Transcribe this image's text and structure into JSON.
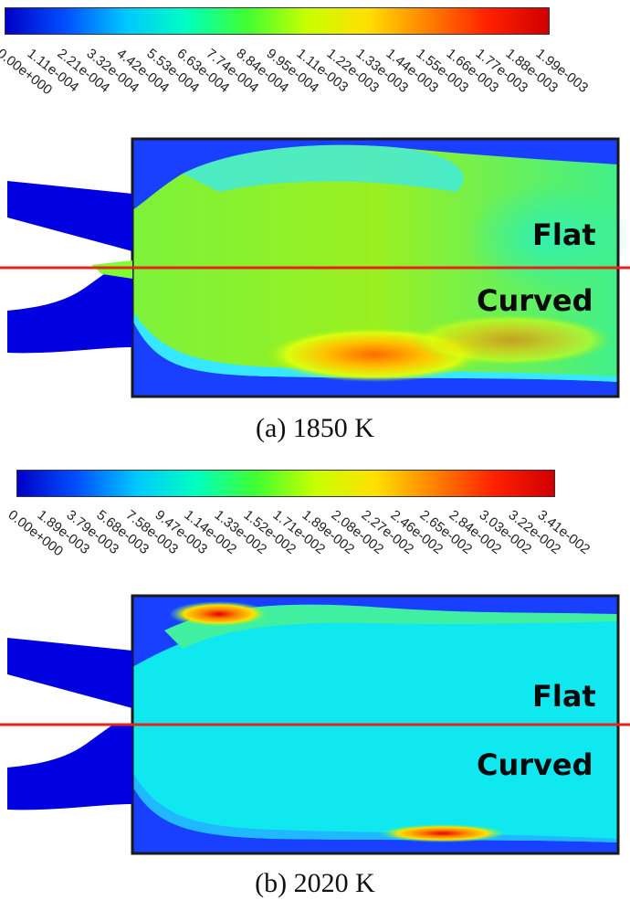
{
  "panels": [
    {
      "id": "a",
      "caption": "(a) 1850 K",
      "label_flat": "Flat",
      "label_curved": "Curved",
      "colorbar_ticks": [
        "0.00e+000",
        "1.11e-004",
        "2.21e-004",
        "3.32e-004",
        "4.42e-004",
        "5.53e-004",
        "6.63e-004",
        "7.74e-004",
        "8.84e-004",
        "9.95e-004",
        "1.11e-003",
        "1.22e-003",
        "1.33e-003",
        "1.44e-003",
        "1.55e-003",
        "1.66e-003",
        "1.77e-003",
        "1.88e-003",
        "1.99e-003"
      ]
    },
    {
      "id": "b",
      "caption": "(b) 2020 K",
      "label_flat": "Flat",
      "label_curved": "Curved",
      "colorbar_ticks": [
        "0.00e+000",
        "1.89e-003",
        "3.79e-003",
        "5.68e-003",
        "7.58e-003",
        "9.47e-003",
        "1.14e-002",
        "1.33e-002",
        "1.52e-002",
        "1.71e-002",
        "1.89e-002",
        "2.08e-002",
        "2.27e-002",
        "2.46e-002",
        "2.65e-002",
        "2.84e-002",
        "3.03e-002",
        "3.22e-002",
        "3.41e-002"
      ]
    }
  ],
  "colors": {
    "divider": "#e8231c",
    "jet": [
      "#0000c8",
      "#0050ff",
      "#00c8ff",
      "#00ffc0",
      "#40ff30",
      "#c8ff00",
      "#ffe000",
      "#ff8000",
      "#ff2000",
      "#d00000"
    ]
  }
}
